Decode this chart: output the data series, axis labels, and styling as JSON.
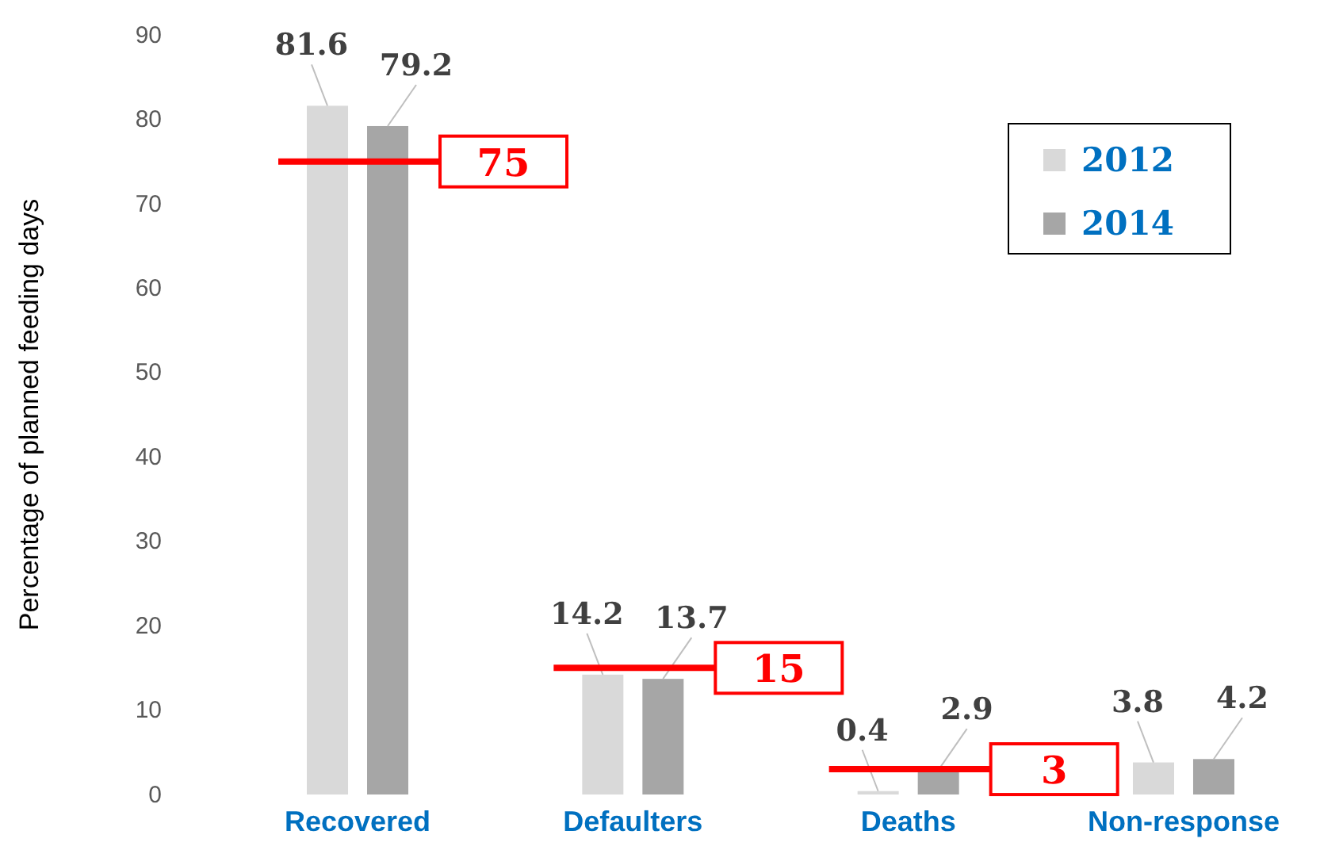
{
  "chart_data": {
    "type": "bar",
    "ylabel": "Percentage of planned feeding days",
    "categories": [
      "Recovered",
      "Defaulters",
      "Deaths",
      "Non-response"
    ],
    "series": [
      {
        "name": "2012",
        "color": "#d9d9d9",
        "values": [
          81.6,
          14.2,
          0.4,
          3.8
        ]
      },
      {
        "name": "2014",
        "color": "#a6a6a6",
        "values": [
          79.2,
          13.7,
          2.9,
          4.2
        ]
      }
    ],
    "ylim": [
      0,
      90
    ],
    "yticks": [
      0,
      10,
      20,
      30,
      40,
      50,
      60,
      70,
      80,
      90
    ],
    "grid": false,
    "legend": "top right",
    "data_labels": true,
    "ref_lines": [
      {
        "axis": "y",
        "value": 75,
        "label": "75",
        "color": "#ff0000"
      },
      {
        "axis": "y",
        "value": 15,
        "label": "15",
        "color": "#ff0000"
      },
      {
        "axis": "y",
        "value": 3,
        "label": "3",
        "color": "#ff0000"
      }
    ]
  }
}
